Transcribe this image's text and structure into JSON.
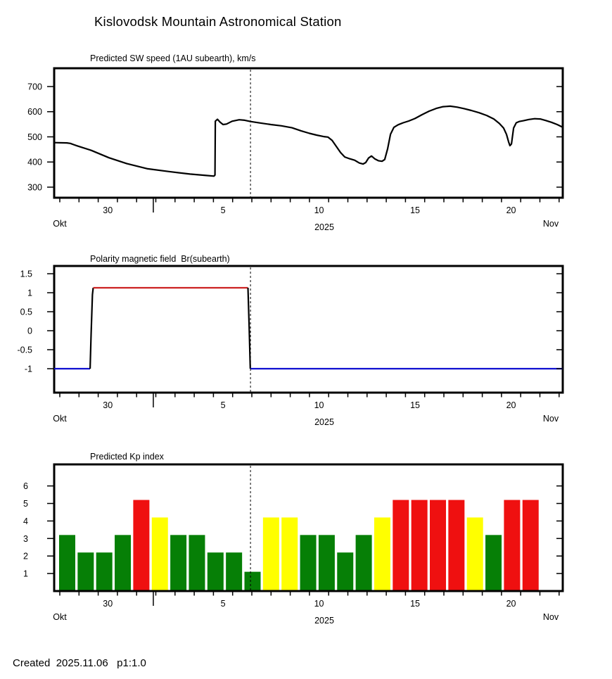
{
  "page": {
    "title": "Kislovodsk Mountain Astronomical Station",
    "footer": "Created  2025.11.06   p1:1.0",
    "background": "#ffffff",
    "text_color": "#000000"
  },
  "x_axis": {
    "start_date": "2025-10-28",
    "month_left": "Okt",
    "month_right": "Nov",
    "year": "2025",
    "day_tick_count": 27,
    "day_labels": [
      {
        "text": "30",
        "day": 2.5
      },
      {
        "text": "5",
        "day": 8.5
      },
      {
        "text": "10",
        "day": 13.5
      },
      {
        "text": "15",
        "day": 18.5
      },
      {
        "text": "20",
        "day": 23.5
      }
    ],
    "month_boundary_tick_day": 4.87,
    "forecast_start_day": 9.93
  },
  "chart_data": [
    {
      "type": "line",
      "name": "sw_speed",
      "title": "Predicted SW speed (1AU subearth), km/s",
      "xlabel_unit": "days since 2025-10-28 00:00 UT",
      "ylim": [
        258.0,
        772.7
      ],
      "yticks": [
        {
          "v": 700,
          "label": "700"
        },
        {
          "v": 600,
          "label": "600"
        },
        {
          "v": 500,
          "label": "500"
        },
        {
          "v": 400,
          "label": "400"
        },
        {
          "v": 300,
          "label": "300"
        }
      ],
      "line_color": "#000000",
      "points": [
        [
          -0.29,
          477
        ],
        [
          0.37,
          476
        ],
        [
          0.55,
          474
        ],
        [
          0.73,
          469
        ],
        [
          0.92,
          464
        ],
        [
          1.65,
          446
        ],
        [
          2.56,
          417
        ],
        [
          3.48,
          394
        ],
        [
          4.58,
          373
        ],
        [
          5.68,
          362
        ],
        [
          6.78,
          352
        ],
        [
          7.69,
          346
        ],
        [
          8.03,
          344
        ],
        [
          8.08,
          348
        ],
        [
          8.1,
          562
        ],
        [
          8.21,
          570
        ],
        [
          8.35,
          558
        ],
        [
          8.5,
          549
        ],
        [
          8.68,
          551
        ],
        [
          8.97,
          562
        ],
        [
          9.34,
          568
        ],
        [
          9.63,
          566
        ],
        [
          9.93,
          561
        ],
        [
          10.44,
          555
        ],
        [
          10.99,
          549
        ],
        [
          11.54,
          544
        ],
        [
          12.09,
          536
        ],
        [
          12.56,
          524
        ],
        [
          13.0,
          514
        ],
        [
          13.37,
          507
        ],
        [
          13.74,
          501
        ],
        [
          13.96,
          499
        ],
        [
          14.18,
          486
        ],
        [
          14.4,
          462
        ],
        [
          14.62,
          438
        ],
        [
          14.84,
          420
        ],
        [
          15.09,
          413
        ],
        [
          15.35,
          407
        ],
        [
          15.6,
          396
        ],
        [
          15.79,
          392
        ],
        [
          15.93,
          398
        ],
        [
          16.08,
          416
        ],
        [
          16.23,
          424
        ],
        [
          16.41,
          412
        ],
        [
          16.59,
          405
        ],
        [
          16.78,
          403
        ],
        [
          16.92,
          410
        ],
        [
          17.07,
          452
        ],
        [
          17.22,
          510
        ],
        [
          17.4,
          538
        ],
        [
          17.62,
          548
        ],
        [
          17.88,
          556
        ],
        [
          18.17,
          563
        ],
        [
          18.5,
          573
        ],
        [
          18.86,
          588
        ],
        [
          19.23,
          602
        ],
        [
          19.6,
          613
        ],
        [
          19.96,
          620
        ],
        [
          20.33,
          622
        ],
        [
          20.7,
          618
        ],
        [
          21.06,
          612
        ],
        [
          21.43,
          605
        ],
        [
          21.83,
          596
        ],
        [
          22.23,
          585
        ],
        [
          22.6,
          571
        ],
        [
          22.89,
          553
        ],
        [
          23.11,
          535
        ],
        [
          23.26,
          510
        ],
        [
          23.37,
          480
        ],
        [
          23.44,
          465
        ],
        [
          23.52,
          472
        ],
        [
          23.63,
          535
        ],
        [
          23.77,
          556
        ],
        [
          23.92,
          561
        ],
        [
          24.14,
          564
        ],
        [
          24.43,
          569
        ],
        [
          24.73,
          572
        ],
        [
          25.02,
          571
        ],
        [
          25.31,
          565
        ],
        [
          25.6,
          558
        ],
        [
          25.9,
          549
        ],
        [
          26.19,
          538
        ]
      ]
    },
    {
      "type": "segments",
      "name": "polarity",
      "title": "Polarity magnetic field  Br(subearth)",
      "ylim": [
        -1.63,
        1.704
      ],
      "yticks": [
        {
          "v": 1.5,
          "label": "1.5"
        },
        {
          "v": 1,
          "label": "1"
        },
        {
          "v": 0.5,
          "label": "0.5"
        },
        {
          "v": 0,
          "label": "0"
        },
        {
          "v": -0.5,
          "label": "-0.5"
        },
        {
          "v": -1,
          "label": "-1"
        }
      ],
      "segments": [
        {
          "color": "#0f0fd0",
          "points": [
            [
              -0.29,
              -1.0
            ],
            [
              1.58,
              -1.0
            ]
          ]
        },
        {
          "color": "#000000",
          "points": [
            [
              1.58,
              -1.0
            ],
            [
              1.63,
              -0.1
            ],
            [
              1.7,
              0.95
            ],
            [
              1.74,
              1.13
            ]
          ]
        },
        {
          "color": "#cc2222",
          "points": [
            [
              1.74,
              1.13
            ],
            [
              9.8,
              1.13
            ]
          ]
        },
        {
          "color": "#000000",
          "points": [
            [
              9.8,
              1.13
            ],
            [
              9.86,
              0.1
            ],
            [
              9.92,
              -1.0
            ]
          ]
        },
        {
          "color": "#0f0fd0",
          "points": [
            [
              9.92,
              -1.0
            ],
            [
              26.19,
              -1.0
            ]
          ]
        }
      ]
    },
    {
      "type": "bar",
      "name": "kp_index",
      "title": "Predicted Kp index",
      "ylim": [
        0,
        7.23
      ],
      "yticks": [
        {
          "v": 6,
          "label": "6"
        },
        {
          "v": 5,
          "label": "5"
        },
        {
          "v": 4,
          "label": "4"
        },
        {
          "v": 3,
          "label": "3"
        },
        {
          "v": 2,
          "label": "2"
        },
        {
          "v": 1,
          "label": "1"
        }
      ],
      "level_colors": {
        "quiet": "#067f06",
        "active": "#ffff00",
        "storm": "#ef1010"
      },
      "bars": [
        {
          "day": 0,
          "value": 3.2,
          "level": "quiet"
        },
        {
          "day": 1,
          "value": 2.2,
          "level": "quiet"
        },
        {
          "day": 2,
          "value": 2.2,
          "level": "quiet"
        },
        {
          "day": 3,
          "value": 3.2,
          "level": "quiet"
        },
        {
          "day": 4,
          "value": 5.2,
          "level": "storm"
        },
        {
          "day": 5,
          "value": 4.2,
          "level": "active"
        },
        {
          "day": 6,
          "value": 3.2,
          "level": "quiet"
        },
        {
          "day": 7,
          "value": 3.2,
          "level": "quiet"
        },
        {
          "day": 8,
          "value": 2.2,
          "level": "quiet"
        },
        {
          "day": 9,
          "value": 2.2,
          "level": "quiet"
        },
        {
          "day": 10,
          "value": 1.1,
          "level": "quiet"
        },
        {
          "day": 11,
          "value": 4.2,
          "level": "active"
        },
        {
          "day": 12,
          "value": 4.2,
          "level": "active"
        },
        {
          "day": 13,
          "value": 3.2,
          "level": "quiet"
        },
        {
          "day": 14,
          "value": 3.2,
          "level": "quiet"
        },
        {
          "day": 15,
          "value": 2.2,
          "level": "quiet"
        },
        {
          "day": 16,
          "value": 3.2,
          "level": "quiet"
        },
        {
          "day": 17,
          "value": 4.2,
          "level": "active"
        },
        {
          "day": 18,
          "value": 5.2,
          "level": "storm"
        },
        {
          "day": 19,
          "value": 5.2,
          "level": "storm"
        },
        {
          "day": 20,
          "value": 5.2,
          "level": "storm"
        },
        {
          "day": 21,
          "value": 5.2,
          "level": "storm"
        },
        {
          "day": 22,
          "value": 4.2,
          "level": "active"
        },
        {
          "day": 23,
          "value": 3.2,
          "level": "quiet"
        },
        {
          "day": 24,
          "value": 5.2,
          "level": "storm"
        },
        {
          "day": 25,
          "value": 5.2,
          "level": "storm"
        }
      ]
    }
  ]
}
